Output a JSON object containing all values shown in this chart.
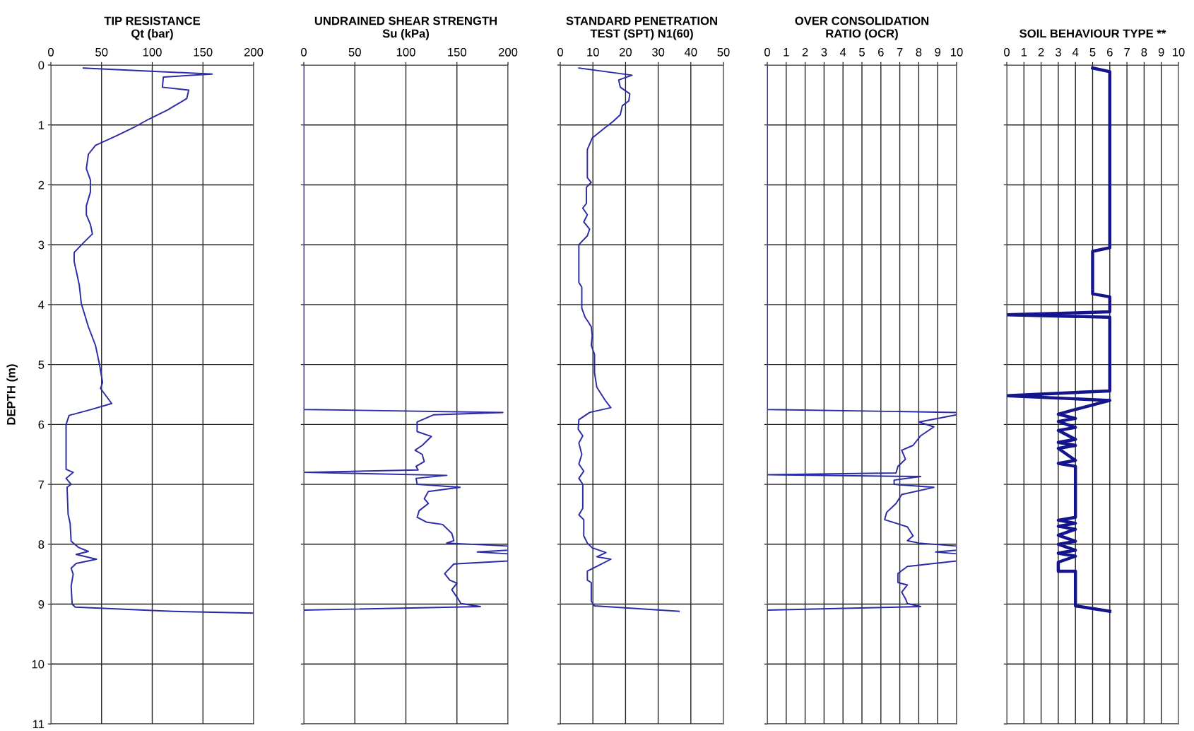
{
  "chart_data": [
    {
      "type": "line",
      "orientation": "horizontal",
      "title": "TIP RESISTANCE\nQt (bar)",
      "ylabel": "DEPTH (m)",
      "xlim": [
        0,
        200
      ],
      "xticks": [
        0,
        50,
        100,
        150,
        200
      ],
      "ylim": [
        11,
        0
      ],
      "yticks": [
        0,
        1,
        2,
        3,
        4,
        5,
        6,
        7,
        8,
        9,
        10,
        11
      ],
      "grid": true,
      "series": [
        {
          "color": "#2b2ba6",
          "x": [
            0.05,
            0.15,
            0.2,
            0.37,
            0.42,
            0.56,
            0.68,
            0.75,
            0.9,
            1.03,
            1.18,
            1.34,
            1.49,
            1.73,
            1.92,
            2.12,
            2.35,
            2.5,
            2.66,
            2.82,
            2.97,
            3.13,
            3.28,
            3.67,
            3.98,
            4.37,
            4.68,
            5.0,
            5.3,
            5.4,
            5.65,
            5.75,
            5.85,
            6.0,
            6.75,
            6.8,
            6.9,
            7.0,
            7.05,
            7.5,
            7.65,
            7.95,
            8.05,
            8.12,
            8.17,
            8.25,
            8.32,
            8.4,
            8.5,
            8.7,
            9.0,
            9.05,
            9.12,
            9.15
          ],
          "values": [
            32,
            159,
            111,
            110,
            136,
            134,
            122,
            115,
            97,
            83,
            65,
            44,
            37,
            35,
            39,
            39,
            35,
            35,
            39,
            41,
            32,
            23,
            23,
            28,
            30,
            37,
            44,
            48,
            51,
            49,
            60,
            40,
            18,
            15,
            15,
            22,
            15,
            20,
            16,
            17,
            19,
            20,
            27,
            37,
            25,
            45,
            25,
            20,
            22,
            20,
            21,
            24,
            120,
            200
          ]
        }
      ]
    },
    {
      "type": "line",
      "orientation": "horizontal",
      "title": "UNDRAINED SHEAR STRENGTH\nSu (kPa)",
      "xlim": [
        0,
        200
      ],
      "xticks": [
        0,
        50,
        100,
        150,
        200
      ],
      "ylim": [
        11,
        0
      ],
      "yticks": [
        0,
        1,
        2,
        3,
        4,
        5,
        6,
        7,
        8,
        9,
        10,
        11
      ],
      "grid": true,
      "tick_labels": "x",
      "series": [
        {
          "color": "#2b2ba6",
          "x": [
            0,
            5.75,
            5.8,
            5.84,
            5.96,
            6.12,
            6.2,
            6.35,
            6.43,
            6.5,
            6.62,
            6.7,
            6.76,
            6.8,
            6.85,
            6.9,
            7.0,
            7.05,
            7.12,
            7.24,
            7.32,
            7.44,
            7.55,
            7.63,
            7.67,
            7.82,
            7.94,
            7.98,
            8.03,
            8.1,
            8.13,
            8.16,
            8.28,
            8.33,
            8.49,
            8.6,
            8.65,
            8.76,
            8.91,
            8.99,
            9.04,
            9.1,
            9.15
          ],
          "values": [
            0,
            0,
            195,
            127,
            111,
            111,
            125,
            116,
            109,
            116,
            118,
            110,
            112,
            0,
            140,
            110,
            111,
            153,
            122,
            118,
            122,
            113,
            111,
            120,
            136,
            145,
            147,
            140,
            200,
            200,
            170,
            200,
            200,
            147,
            138,
            143,
            150,
            145,
            151,
            154,
            173,
            0,
            0
          ]
        }
      ]
    },
    {
      "type": "line",
      "orientation": "horizontal",
      "title": "STANDARD PENETRATION\nTEST (SPT) N1(60)",
      "xlim": [
        0,
        50
      ],
      "xticks": [
        0,
        10,
        20,
        30,
        40,
        50
      ],
      "ylim": [
        11,
        0
      ],
      "yticks": [
        0,
        1,
        2,
        3,
        4,
        5,
        6,
        7,
        8,
        9,
        10,
        11
      ],
      "grid": true,
      "tick_labels": "x",
      "series": [
        {
          "color": "#2b2ba6",
          "x": [
            0.05,
            0.17,
            0.25,
            0.37,
            0.48,
            0.6,
            0.68,
            0.83,
            0.95,
            1.06,
            1.22,
            1.41,
            1.88,
            1.96,
            2.04,
            2.31,
            2.39,
            2.5,
            2.62,
            2.74,
            2.85,
            3.0,
            3.63,
            3.71,
            4.06,
            4.21,
            4.29,
            4.37,
            4.52,
            4.68,
            4.83,
            5.14,
            5.38,
            5.6,
            5.72,
            5.8,
            5.92,
            6.08,
            6.19,
            6.31,
            6.5,
            6.66,
            6.78,
            6.9,
            7.0,
            7.4,
            7.51,
            7.59,
            7.86,
            7.98,
            8.06,
            8.14,
            8.21,
            8.25,
            8.37,
            8.45,
            8.6,
            8.64,
            8.95,
            9.03,
            9.12
          ],
          "values": [
            5.7,
            22,
            17.9,
            18.4,
            21.3,
            21,
            19,
            18.4,
            16,
            13.4,
            9.8,
            8.3,
            8.3,
            9.5,
            8,
            8,
            6.9,
            8.3,
            7.2,
            9,
            8.3,
            5.7,
            5.7,
            6.6,
            6.6,
            7.6,
            8.6,
            9.5,
            9.8,
            9.5,
            10.5,
            10.5,
            11.2,
            13.8,
            15.5,
            9,
            5.7,
            5.5,
            6.9,
            5.7,
            6.6,
            5.7,
            7.2,
            5.7,
            6.9,
            6.9,
            5.7,
            7.2,
            7.2,
            8.3,
            9.8,
            14,
            11.2,
            15.5,
            11.2,
            8.3,
            8.3,
            9.5,
            9.5,
            10.5,
            36.4
          ]
        }
      ]
    },
    {
      "type": "line",
      "orientation": "horizontal",
      "title": "OVER CONSOLIDATION\nRATIO (OCR)",
      "xlim": [
        0,
        10
      ],
      "xticks": [
        0,
        1,
        2,
        3,
        4,
        5,
        6,
        7,
        8,
        9,
        10
      ],
      "ylim": [
        11,
        0
      ],
      "yticks": [
        0,
        1,
        2,
        3,
        4,
        5,
        6,
        7,
        8,
        9,
        10,
        11
      ],
      "grid": true,
      "tick_labels": "x",
      "series": [
        {
          "color": "#2b2ba6",
          "x": [
            0,
            5.75,
            5.8,
            5.84,
            5.96,
            6.04,
            6.19,
            6.35,
            6.43,
            6.58,
            6.7,
            6.81,
            6.84,
            6.87,
            6.93,
            7.0,
            7.05,
            7.17,
            7.32,
            7.47,
            7.59,
            7.67,
            7.71,
            7.86,
            7.94,
            7.98,
            8.03,
            8.1,
            8.13,
            8.16,
            8.28,
            8.37,
            8.49,
            8.64,
            8.68,
            8.8,
            8.91,
            8.99,
            9.04,
            9.1
          ],
          "values": [
            0,
            0,
            10,
            10,
            8,
            8.8,
            8.1,
            7.7,
            7.1,
            7.3,
            6.9,
            6.8,
            0,
            8.1,
            6.7,
            6.7,
            8.8,
            7.1,
            6.8,
            6.3,
            6.2,
            7,
            7.4,
            7.7,
            7.4,
            8,
            10,
            10,
            8.9,
            10,
            10,
            7.4,
            6.9,
            6.9,
            7.4,
            7.1,
            7.3,
            7.4,
            8.1,
            0
          ]
        }
      ]
    },
    {
      "type": "line",
      "orientation": "horizontal",
      "title": "SOIL BEHAVIOUR TYPE **",
      "xlim": [
        0,
        10
      ],
      "xticks": [
        0,
        1,
        2,
        3,
        4,
        5,
        6,
        7,
        8,
        9,
        10
      ],
      "ylim": [
        11,
        0
      ],
      "yticks": [
        0,
        1,
        2,
        3,
        4,
        5,
        6,
        7,
        8,
        9,
        10,
        11
      ],
      "grid": true,
      "tick_labels": "x",
      "series": [
        {
          "color": "#14148c",
          "x": [
            0.05,
            0.11,
            3.05,
            3.11,
            3.82,
            3.87,
            4.12,
            4.17,
            4.21,
            5.44,
            5.52,
            5.6,
            5.75,
            5.83,
            5.9,
            5.95,
            6.05,
            6.1,
            6.25,
            6.3,
            6.35,
            6.4,
            6.6,
            6.65,
            6.7,
            7.55,
            7.6,
            7.65,
            7.7,
            7.75,
            7.85,
            7.95,
            8.0,
            8.1,
            8.15,
            8.2,
            8.3,
            8.45,
            8.45,
            9.03,
            9.12
          ],
          "values": [
            5,
            6,
            6,
            5,
            5,
            6,
            6,
            0,
            6,
            6,
            0,
            6,
            4,
            3,
            4,
            3,
            4,
            3,
            4,
            3,
            4,
            3,
            4,
            3,
            4,
            4,
            3,
            4,
            3,
            4,
            3,
            4,
            3,
            4,
            3,
            4,
            3,
            3,
            4,
            4,
            6
          ]
        }
      ]
    }
  ]
}
